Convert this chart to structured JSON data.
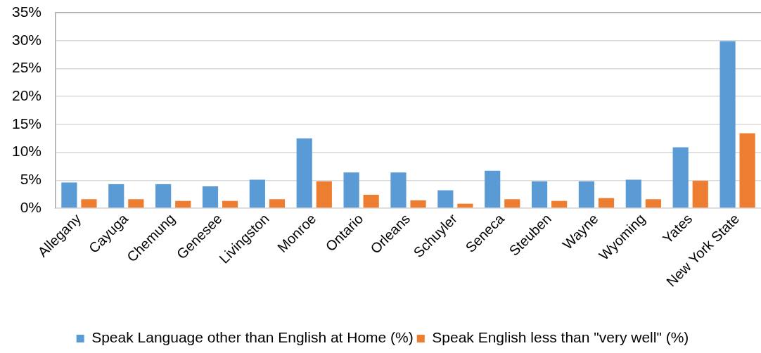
{
  "chart_data": {
    "type": "bar",
    "categories": [
      "Allegany",
      "Cayuga",
      "Chemung",
      "Genesee",
      "Livingston",
      "Monroe",
      "Ontario",
      "Orleans",
      "Schuyler",
      "Seneca",
      "Steuben",
      "Wayne",
      "Wyoming",
      "Yates",
      "New York State"
    ],
    "series": [
      {
        "name": "Speak Language other than English at Home (%)",
        "color": "#5b9bd5",
        "values": [
          4.6,
          4.3,
          4.3,
          3.9,
          5.1,
          12.5,
          6.4,
          6.4,
          3.2,
          6.7,
          4.8,
          4.8,
          5.1,
          10.9,
          29.9
        ]
      },
      {
        "name": "Speak English less than \"very well\" (%)",
        "color": "#ed7d31",
        "values": [
          1.6,
          1.6,
          1.3,
          1.3,
          1.6,
          4.8,
          2.4,
          1.4,
          0.8,
          1.6,
          1.3,
          1.8,
          1.6,
          4.9,
          13.4
        ]
      }
    ],
    "ylim": [
      0,
      35
    ],
    "yticks": [
      {
        "value": 0,
        "label": "0%"
      },
      {
        "value": 5,
        "label": "5%"
      },
      {
        "value": 10,
        "label": "10%"
      },
      {
        "value": 15,
        "label": "15%"
      },
      {
        "value": 20,
        "label": "20%"
      },
      {
        "value": 25,
        "label": "25%"
      },
      {
        "value": 30,
        "label": "30%"
      },
      {
        "value": 35,
        "label": "35%"
      }
    ],
    "grid": "y",
    "legend": "bottom"
  }
}
